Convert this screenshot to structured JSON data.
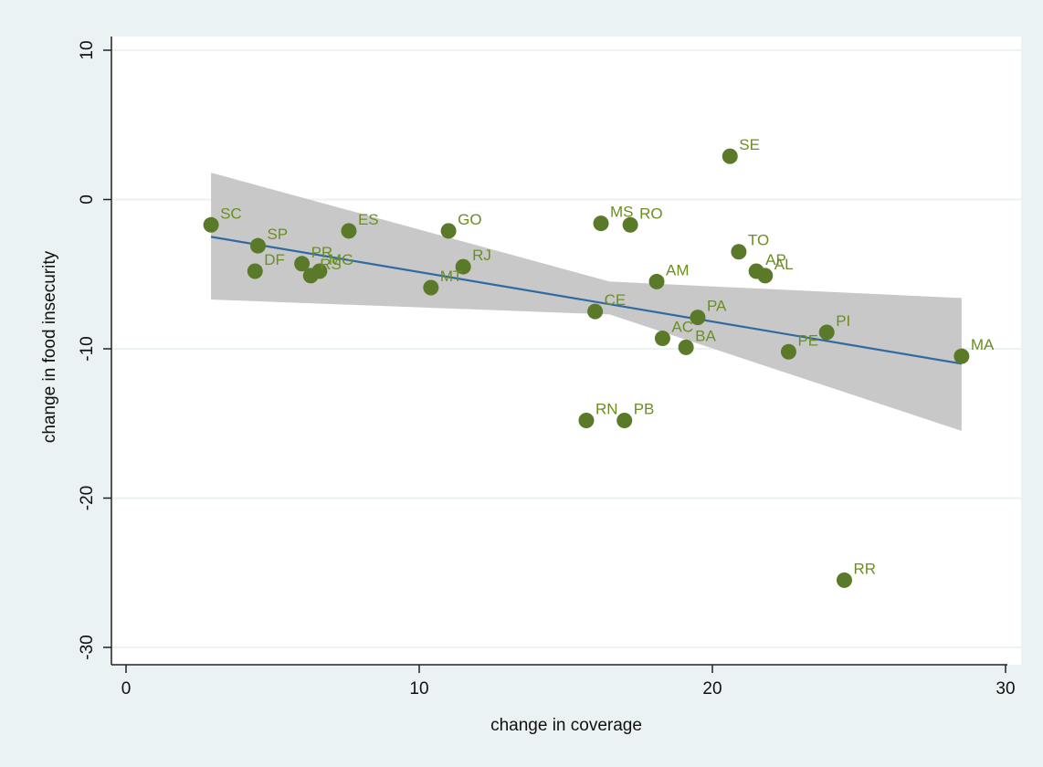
{
  "chart_data": {
    "type": "scatter",
    "title": "",
    "xlabel": "change in coverage",
    "ylabel": "change in food insecurity",
    "xlim": [
      -0.5,
      30.3
    ],
    "ylim": [
      -31,
      11
    ],
    "xticks": [
      "0",
      "10",
      "20",
      "30"
    ],
    "yticks": [
      "10",
      "0",
      "-10",
      "-20",
      "-30"
    ],
    "grid": true,
    "legend": "none",
    "colors": {
      "background": "#eaf2f3",
      "plot_area": "#ffffff",
      "point": "#5a7a2a",
      "label": "#6b8e23",
      "fit_line": "#2f6aa0",
      "confidence_band": "#c8c8c8",
      "grid": "#eaf2f3"
    },
    "points": [
      {
        "label": "SC",
        "x": 2.9,
        "y": -1.7
      },
      {
        "label": "SP",
        "x": 4.5,
        "y": -3.1
      },
      {
        "label": "DF",
        "x": 4.4,
        "y": -4.8
      },
      {
        "label": "PR",
        "x": 6.0,
        "y": -4.3
      },
      {
        "label": "RS",
        "x": 6.3,
        "y": -5.1
      },
      {
        "label": "MG",
        "x": 6.6,
        "y": -4.8
      },
      {
        "label": "ES",
        "x": 7.6,
        "y": -2.1
      },
      {
        "label": "GO",
        "x": 11.0,
        "y": -2.1
      },
      {
        "label": "RJ",
        "x": 11.5,
        "y": -4.5
      },
      {
        "label": "MT",
        "x": 10.4,
        "y": -5.9
      },
      {
        "label": "MS",
        "x": 16.2,
        "y": -1.6
      },
      {
        "label": "RO",
        "x": 17.2,
        "y": -1.7
      },
      {
        "label": "CE",
        "x": 16.0,
        "y": -7.5
      },
      {
        "label": "RN",
        "x": 15.7,
        "y": -14.8
      },
      {
        "label": "PB",
        "x": 17.0,
        "y": -14.8
      },
      {
        "label": "AM",
        "x": 18.1,
        "y": -5.5
      },
      {
        "label": "AC",
        "x": 18.3,
        "y": -9.3
      },
      {
        "label": "BA",
        "x": 19.1,
        "y": -9.9
      },
      {
        "label": "PA",
        "x": 19.5,
        "y": -7.9
      },
      {
        "label": "SE",
        "x": 20.6,
        "y": 2.9
      },
      {
        "label": "TO",
        "x": 20.9,
        "y": -3.5
      },
      {
        "label": "AP",
        "x": 21.5,
        "y": -4.8
      },
      {
        "label": "AL",
        "x": 21.8,
        "y": -5.1
      },
      {
        "label": "PE",
        "x": 22.6,
        "y": -10.2
      },
      {
        "label": "PI",
        "x": 23.9,
        "y": -8.9
      },
      {
        "label": "RR",
        "x": 24.5,
        "y": -25.5
      },
      {
        "label": "MA",
        "x": 28.5,
        "y": -10.5
      }
    ],
    "fit_line": {
      "x": [
        2.9,
        28.5
      ],
      "y": [
        -2.5,
        -11.0
      ]
    },
    "confidence_band": {
      "upper": [
        {
          "x": 2.9,
          "y": 1.8
        },
        {
          "x": 16.5,
          "y": -5.5
        },
        {
          "x": 28.5,
          "y": -6.6
        }
      ],
      "lower": [
        {
          "x": 2.9,
          "y": -6.7
        },
        {
          "x": 16.5,
          "y": -7.7
        },
        {
          "x": 28.5,
          "y": -15.5
        }
      ]
    }
  }
}
